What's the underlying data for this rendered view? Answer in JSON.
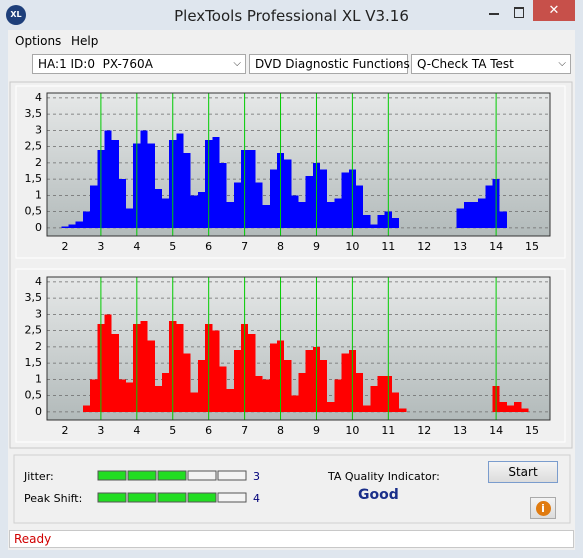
{
  "window": {
    "title": "PlexTools Professional XL V3.16"
  },
  "menu": [
    "Options",
    "Help"
  ],
  "toolbar": {
    "drive": "HA:1 ID:0  PX-760A",
    "function": "DVD Diagnostic Functions",
    "test": "Q-Check TA Test"
  },
  "chart_data": [
    {
      "type": "bar",
      "color": "#0000ff",
      "marker_color": "#00cc00",
      "grid": true,
      "xlim": [
        1.5,
        15.5
      ],
      "ylim": [
        -0.25,
        4.15
      ],
      "xticks": [
        2,
        3,
        4,
        5,
        6,
        7,
        8,
        9,
        10,
        11,
        12,
        13,
        14,
        15
      ],
      "yticks": [
        0,
        {
          "value": 0.5,
          "label": "0,5"
        },
        1,
        {
          "value": 1.5,
          "label": "1,5"
        },
        2,
        {
          "value": 2.5,
          "label": "2,5"
        },
        3,
        {
          "value": 3.5,
          "label": "3,5"
        },
        4
      ],
      "marker_lines": [
        3,
        4,
        5,
        6,
        7,
        8,
        9,
        10,
        11,
        14
      ],
      "x": [
        1.8,
        2.0,
        2.2,
        2.4,
        2.6,
        2.8,
        3.0,
        3.2,
        3.4,
        3.6,
        3.8,
        4.0,
        4.2,
        4.4,
        4.6,
        4.8,
        5.0,
        5.2,
        5.4,
        5.6,
        5.8,
        6.0,
        6.2,
        6.4,
        6.6,
        6.8,
        7.0,
        7.2,
        7.4,
        7.6,
        7.8,
        8.0,
        8.2,
        8.4,
        8.6,
        8.8,
        9.0,
        9.2,
        9.4,
        9.6,
        9.8,
        10.0,
        10.2,
        10.4,
        10.6,
        10.8,
        11.0,
        11.2,
        11.4,
        11.6,
        11.8,
        12.0,
        12.2,
        12.4,
        12.6,
        12.8,
        13.0,
        13.2,
        13.4,
        13.6,
        13.8,
        14.0,
        14.2,
        14.4,
        14.6,
        14.8
      ],
      "values": [
        0,
        0.05,
        0.1,
        0.2,
        0.5,
        1.3,
        2.4,
        3.0,
        2.7,
        1.5,
        0.6,
        2.6,
        3.0,
        2.6,
        1.2,
        0.9,
        2.7,
        2.9,
        2.3,
        1.0,
        1.1,
        2.7,
        2.8,
        2.0,
        0.8,
        1.4,
        2.4,
        2.4,
        1.4,
        0.7,
        1.8,
        2.3,
        2.1,
        1.0,
        0.8,
        1.6,
        2.0,
        1.8,
        0.8,
        0.9,
        1.7,
        1.8,
        1.3,
        0.4,
        0.1,
        0.4,
        0.5,
        0.3,
        0,
        0,
        0,
        0,
        0,
        0,
        0,
        0,
        0.6,
        0.8,
        0.8,
        0.9,
        1.3,
        1.5,
        0.5,
        0,
        0,
        0
      ]
    },
    {
      "type": "bar",
      "color": "#ff0000",
      "marker_color": "#00cc00",
      "grid": true,
      "xlim": [
        1.5,
        15.5
      ],
      "ylim": [
        -0.25,
        4.15
      ],
      "xticks": [
        2,
        3,
        4,
        5,
        6,
        7,
        8,
        9,
        10,
        11,
        12,
        13,
        14,
        15
      ],
      "yticks": [
        0,
        {
          "value": 0.5,
          "label": "0,5"
        },
        1,
        {
          "value": 1.5,
          "label": "1,5"
        },
        2,
        {
          "value": 2.5,
          "label": "2,5"
        },
        3,
        {
          "value": 3.5,
          "label": "3,5"
        },
        4
      ],
      "marker_lines": [
        3,
        4,
        5,
        6,
        7,
        8,
        9,
        10,
        11,
        14
      ],
      "x": [
        1.8,
        2.0,
        2.2,
        2.4,
        2.6,
        2.8,
        3.0,
        3.2,
        3.4,
        3.6,
        3.8,
        4.0,
        4.2,
        4.4,
        4.6,
        4.8,
        5.0,
        5.2,
        5.4,
        5.6,
        5.8,
        6.0,
        6.2,
        6.4,
        6.6,
        6.8,
        7.0,
        7.2,
        7.4,
        7.6,
        7.8,
        8.0,
        8.2,
        8.4,
        8.6,
        8.8,
        9.0,
        9.2,
        9.4,
        9.6,
        9.8,
        10.0,
        10.2,
        10.4,
        10.6,
        10.8,
        11.0,
        11.2,
        11.4,
        11.6,
        11.8,
        12.0,
        12.2,
        12.4,
        12.6,
        12.8,
        13.0,
        13.2,
        13.4,
        13.6,
        13.8,
        14.0,
        14.2,
        14.4,
        14.6,
        14.8
      ],
      "values": [
        0,
        0,
        0,
        0,
        0.2,
        1.0,
        2.7,
        3.0,
        2.4,
        1.0,
        0.9,
        2.7,
        2.8,
        2.2,
        0.8,
        1.2,
        2.8,
        2.7,
        1.8,
        0.6,
        1.6,
        2.7,
        2.5,
        1.4,
        0.7,
        1.9,
        2.7,
        2.4,
        1.1,
        1.0,
        2.1,
        2.2,
        1.6,
        0.5,
        1.2,
        1.9,
        2.0,
        1.6,
        0.3,
        1.0,
        1.8,
        1.9,
        1.2,
        0.2,
        0.8,
        1.1,
        1.1,
        0.6,
        0.1,
        0,
        0,
        0,
        0,
        0,
        0,
        0,
        0,
        0,
        0,
        0,
        0,
        0.8,
        0.3,
        0.2,
        0.3,
        0.1
      ]
    }
  ],
  "results": {
    "jitter_label": "Jitter:",
    "jitter": 3,
    "peak_shift_label": "Peak Shift:",
    "peak_shift": 4,
    "quality_label": "TA Quality Indicator:",
    "quality": "Good"
  },
  "buttons": {
    "start": "Start"
  },
  "status": "Ready"
}
